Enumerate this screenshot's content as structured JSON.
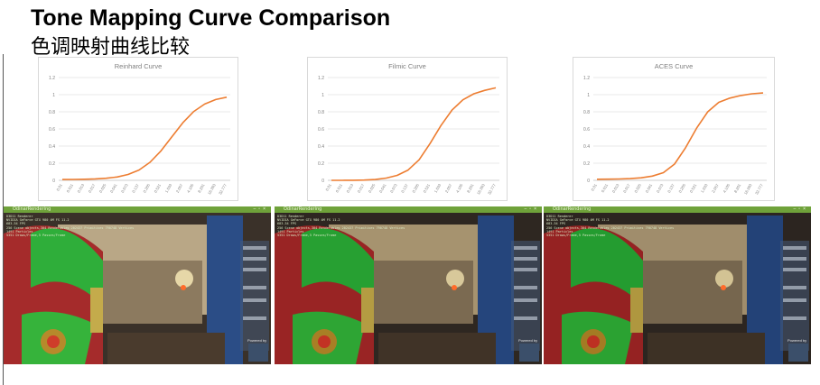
{
  "page": {
    "title_en": "Tone Mapping Curve Comparison",
    "title_zh": "色调映射曲线比较"
  },
  "chart_data": [
    {
      "type": "line",
      "title": "Reinhard Curve",
      "x": [
        "0.01",
        "0.011",
        "0.013",
        "0.017",
        "0.025",
        "0.041",
        "0.073",
        "0.137",
        "0.265",
        "0.521",
        "1.033",
        "2.057",
        "4.105",
        "8.201",
        "16.393",
        "32.777"
      ],
      "y": [
        0.01,
        0.011,
        0.013,
        0.017,
        0.024,
        0.039,
        0.068,
        0.12,
        0.21,
        0.343,
        0.508,
        0.673,
        0.804,
        0.891,
        0.943,
        0.97
      ],
      "ylim": [
        0,
        1.2
      ],
      "yticks": [
        "0",
        "0.2",
        "0.4",
        "0.6",
        "0.8",
        "1",
        "1.2"
      ],
      "grid": true,
      "color": "#ed7d31"
    },
    {
      "type": "line",
      "title": "Filmic Curve",
      "x": [
        "0.01",
        "0.011",
        "0.013",
        "0.017",
        "0.025",
        "0.041",
        "0.073",
        "0.137",
        "0.265",
        "0.521",
        "1.033",
        "2.057",
        "4.105",
        "8.201",
        "16.393",
        "32.777"
      ],
      "y": [
        0.0,
        0.0,
        0.001,
        0.003,
        0.01,
        0.026,
        0.058,
        0.12,
        0.24,
        0.43,
        0.64,
        0.82,
        0.94,
        1.01,
        1.05,
        1.08
      ],
      "ylim": [
        0,
        1.2
      ],
      "yticks": [
        "0",
        "0.2",
        "0.4",
        "0.6",
        "0.8",
        "1",
        "1.2"
      ],
      "grid": true,
      "color": "#ed7d31"
    },
    {
      "type": "line",
      "title": "ACES Curve",
      "x": [
        "0.01",
        "0.011",
        "0.013",
        "0.017",
        "0.025",
        "0.041",
        "0.073",
        "0.137",
        "0.265",
        "0.521",
        "1.033",
        "2.057",
        "4.105",
        "8.201",
        "16.393",
        "32.777"
      ],
      "y": [
        0.013,
        0.014,
        0.016,
        0.02,
        0.03,
        0.05,
        0.09,
        0.19,
        0.38,
        0.61,
        0.8,
        0.91,
        0.96,
        0.99,
        1.01,
        1.02
      ],
      "ylim": [
        0,
        1.2
      ],
      "yticks": [
        "0",
        "0.2",
        "0.4",
        "0.6",
        "0.8",
        "1",
        "1.2"
      ],
      "grid": true,
      "color": "#ed7d31"
    }
  ],
  "screenshots": [
    {
      "window_title": "OdinarRendering",
      "stats": "D3D11 Renderer\nNVIDIA GeForce GTX 980 4M FS 11.2\n683.34 FPS\n256 Scene objects,304 Renderables 202437 Primitives 790748 Vertices\n1491 Particles\n5351 Draws/Frame,5 Passes/Frame",
      "powered_by": "Powered by"
    },
    {
      "window_title": "OdinarRendering",
      "stats": "D3D11 Renderer\nNVIDIA GeForce GTX 980 4M FS 11.2\n683.34 FPS\n256 Scene objects,304 Renderables 202437 Primitives 790748 Vertices\n1491 Particles\n5351 Draws/Frame,5 Passes/Frame",
      "powered_by": "Powered by"
    },
    {
      "window_title": "OdinarRendering",
      "stats": "D3D11 Renderer\nNVIDIA GeForce GTX 980 4M FS 11.2\n683.34 FPS\n256 Scene objects,304 Renderables 202437 Primitives 790748 Vertices\n1491 Particles\n5351 Draws/Frame,5 Passes/Frame",
      "powered_by": "Powered by"
    }
  ]
}
